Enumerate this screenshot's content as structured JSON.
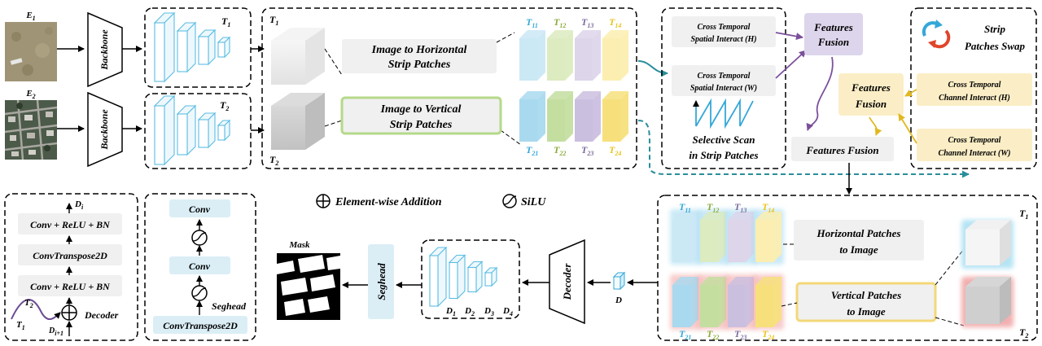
{
  "inputs": {
    "e1": "E1",
    "e2": "E2",
    "backbone": "Backbone",
    "t1": "T1",
    "t2": "T2"
  },
  "strip_block": {
    "t1": "T1",
    "t2": "T2",
    "horizontal_line1": "Image to Horizontal",
    "horizontal_line2": "Strip Patches",
    "vertical_line1": "Image to Vertical",
    "vertical_line2": "Strip Patches",
    "top_tokens": [
      "T11",
      "T12",
      "T13",
      "T14"
    ],
    "bottom_tokens": [
      "T21",
      "T22",
      "T23",
      "T24"
    ]
  },
  "interact_block": {
    "spatial_h_line1": "Cross Temporal",
    "spatial_h_line2": "Spatial Interact  (H)",
    "spatial_w_line1": "Cross Temporal",
    "spatial_w_line2": "Spatial Interact  (W)",
    "scan_line1": "Selective Scan",
    "scan_line2": "in Strip Patches"
  },
  "fusion": {
    "fusion_top_line1": "Features",
    "fusion_top_line2": "Fusion",
    "fusion_mid_line1": "Features",
    "fusion_mid_line2": "Fusion",
    "fusion_bottom": "Features  Fusion"
  },
  "swap_block": {
    "title_line1": "Strip",
    "title_line2": "Patches Swap",
    "channel_h_line1": "Cross Temporal",
    "channel_h_line2": "Channel Interact  (H)",
    "channel_w_line1": "Cross Temporal",
    "channel_w_line2": "Channel Interact  (W)"
  },
  "legend": {
    "addition": "Element-wise Addition",
    "silu": "SiLU"
  },
  "decoder_detail": {
    "d_out": "Di",
    "layer1": "Conv + ReLU + BN",
    "layer2": "ConvTranspose2D",
    "layer3": "Conv + ReLU + BN",
    "t2": "T2",
    "t1": "T1",
    "d_in": "Di+1",
    "label": "Decoder"
  },
  "seghead_detail": {
    "conv1": "Conv",
    "conv2": "Conv",
    "convt": "ConvTranspose2D",
    "label": "Seghead"
  },
  "output_path": {
    "mask": "Mask",
    "seghead": "Seghead",
    "features": [
      "D1",
      "D2",
      "D3",
      "D4"
    ],
    "decoder": "Decoder",
    "d": "D"
  },
  "reconstruct_block": {
    "top_tokens": [
      "T11",
      "T12",
      "T13",
      "T14"
    ],
    "bottom_tokens": [
      "T21",
      "T22",
      "T23",
      "T24"
    ],
    "horizontal_line1": "Horizontal Patches",
    "horizontal_line2": "to Image",
    "vertical_line1": "Vertical Patches",
    "vertical_line2": "to Image",
    "t1": "T1",
    "t2": "T2"
  },
  "colors": {
    "cyan": "#34a7d8",
    "green": "#8aab3a",
    "purple": "#7d6a9f",
    "yellow": "#eac31c",
    "teal_arrow": "#2a8e9c",
    "purple_arrow": "#7b4f9a",
    "yellow_arrow": "#e2b820"
  }
}
